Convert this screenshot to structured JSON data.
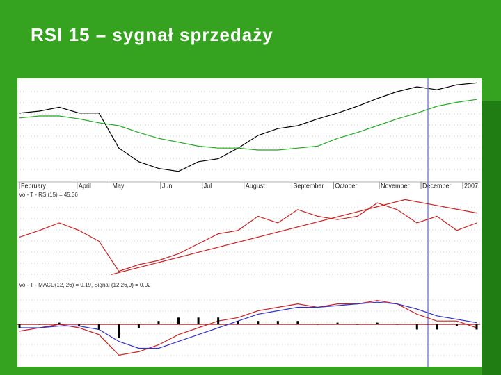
{
  "title": "RSI 15 – sygnał sprzedaży",
  "chart_data": [
    {
      "type": "line",
      "xlim": [
        0,
        23
      ],
      "ylim": [
        0,
        100
      ],
      "xticks": [
        {
          "value": 0,
          "label": "February"
        },
        {
          "value": 2.9,
          "label": "April"
        },
        {
          "value": 4.6,
          "label": "May"
        },
        {
          "value": 7.1,
          "label": "Jun"
        },
        {
          "value": 9.2,
          "label": "Jul"
        },
        {
          "value": 11.3,
          "label": "August"
        },
        {
          "value": 13.7,
          "label": "September"
        },
        {
          "value": 15.8,
          "label": "October"
        },
        {
          "value": 18.1,
          "label": "November"
        },
        {
          "value": 20.2,
          "label": "December"
        },
        {
          "value": 22.3,
          "label": "2007"
        }
      ],
      "vline_x": 20.55,
      "vline_color": "#8080e0",
      "series": [
        {
          "color": "#000000",
          "x": [
            0,
            1,
            2,
            3,
            4,
            5,
            6,
            7,
            8,
            9,
            10,
            11,
            12,
            13,
            14,
            15,
            16,
            17,
            18,
            19,
            20,
            21,
            22,
            23
          ],
          "values": [
            68,
            70,
            74,
            68,
            68,
            32,
            18,
            11,
            8,
            18,
            21,
            32,
            45,
            52,
            55,
            62,
            68,
            75,
            83,
            90,
            95,
            92,
            97,
            99
          ]
        },
        {
          "color": "#22aa22",
          "x": [
            0,
            1,
            2,
            3,
            4,
            5,
            6,
            7,
            8,
            9,
            10,
            11,
            12,
            13,
            14,
            15,
            16,
            17,
            18,
            19,
            20,
            21,
            22,
            23
          ],
          "values": [
            63,
            65,
            65,
            62,
            58,
            55,
            48,
            42,
            38,
            34,
            32,
            32,
            30,
            30,
            32,
            34,
            42,
            48,
            55,
            62,
            68,
            75,
            79,
            82
          ]
        }
      ]
    },
    {
      "type": "line",
      "label": "Vo - T - RSI(15) = 45.36",
      "xlim": [
        0,
        23
      ],
      "ylim": [
        0,
        100
      ],
      "series": [
        {
          "color": "#cc2222",
          "x": [
            0,
            1,
            2,
            3,
            4,
            5,
            6,
            7,
            8,
            9,
            10,
            11,
            12,
            13,
            14,
            15,
            16,
            17,
            18,
            19,
            20,
            21,
            22,
            23
          ],
          "values": [
            53,
            61,
            70,
            61,
            48,
            12,
            20,
            25,
            33,
            45,
            57,
            61,
            78,
            70,
            86,
            78,
            74,
            78,
            94,
            86,
            70,
            78,
            61,
            70
          ]
        },
        {
          "color": "#cc2222",
          "x": [
            4.6,
            19.4,
            23
          ],
          "values": [
            8,
            98,
            82
          ]
        }
      ]
    },
    {
      "type": "line",
      "label": "Vo - T - MACD(12, 26) = 0.19, Signal (12,26,9) = 0.02",
      "xlim": [
        0,
        23
      ],
      "ylim": [
        -1.2,
        1
      ],
      "zero_color": "#aa0000",
      "series": [
        {
          "color": "#cc2222",
          "x": [
            0,
            1,
            2,
            3,
            4,
            5,
            6,
            7,
            8,
            9,
            10,
            11,
            12,
            13,
            14,
            15,
            16,
            17,
            18,
            19,
            20,
            21,
            22,
            23
          ],
          "values": [
            -0.2,
            -0.1,
            0,
            -0.1,
            -0.3,
            -0.9,
            -0.8,
            -0.6,
            -0.3,
            -0.1,
            0.1,
            0.2,
            0.4,
            0.5,
            0.6,
            0.5,
            0.6,
            0.6,
            0.7,
            0.6,
            0.3,
            0.1,
            0.1,
            -0.1
          ]
        },
        {
          "color": "#3333cc",
          "x": [
            0,
            1,
            2,
            3,
            4,
            5,
            6,
            7,
            8,
            9,
            10,
            11,
            12,
            13,
            14,
            15,
            16,
            17,
            18,
            19,
            20,
            21,
            22,
            23
          ],
          "values": [
            -0.1,
            -0.1,
            -0.05,
            -0.05,
            -0.15,
            -0.5,
            -0.7,
            -0.7,
            -0.5,
            -0.3,
            -0.1,
            0.1,
            0.3,
            0.4,
            0.5,
            0.5,
            0.55,
            0.6,
            0.65,
            0.6,
            0.45,
            0.25,
            0.15,
            0.05
          ]
        },
        {
          "style": "bar",
          "color": "#000000",
          "x": [
            0,
            1,
            2,
            3,
            4,
            5,
            6,
            7,
            8,
            9,
            10,
            11,
            12,
            13,
            14,
            15,
            16,
            17,
            18,
            19,
            20,
            21,
            22,
            23
          ],
          "values": [
            -0.1,
            0,
            0.05,
            -0.05,
            -0.15,
            -0.4,
            -0.1,
            0.1,
            0.2,
            0.2,
            0.2,
            0.1,
            0.1,
            0.1,
            0.1,
            0,
            0.05,
            0,
            0.05,
            0,
            -0.15,
            -0.15,
            -0.05,
            -0.15
          ]
        }
      ]
    }
  ]
}
